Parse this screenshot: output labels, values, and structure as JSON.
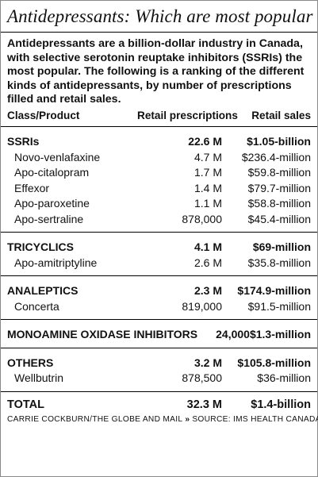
{
  "title": "Antidepressants: Which are most popular",
  "intro": "Antidepressants are a billion-dollar industry in Canada, with selective serotonin reuptake inhibitors (SSRIs) the most popular. The following is a ranking of the different kinds of antidepressants, by number of prescriptions filled and retail sales.",
  "columns": {
    "name": "Class/Product",
    "prescriptions": "Retail prescriptions",
    "sales": "Retail sales"
  },
  "chart_data": {
    "type": "table",
    "groups": [
      {
        "class": "SSRIs",
        "prescriptions": "22.6 M",
        "sales": "$1.05-billion",
        "products": [
          {
            "name": "Novo-venlafaxine",
            "prescriptions": "4.7 M",
            "sales": "$236.4-million"
          },
          {
            "name": "Apo-citalopram",
            "prescriptions": "1.7 M",
            "sales": "$59.8-million"
          },
          {
            "name": "Effexor",
            "prescriptions": "1.4 M",
            "sales": "$79.7-million"
          },
          {
            "name": "Apo-paroxetine",
            "prescriptions": "1.1 M",
            "sales": "$58.8-million"
          },
          {
            "name": "Apo-sertraline",
            "prescriptions": "878,000",
            "sales": "$45.4-million"
          }
        ]
      },
      {
        "class": "TRICYCLICS",
        "prescriptions": "4.1 M",
        "sales": "$69-million",
        "products": [
          {
            "name": "Apo-amitriptyline",
            "prescriptions": "2.6 M",
            "sales": "$35.8-million"
          }
        ]
      },
      {
        "class": "ANALEPTICS",
        "prescriptions": "2.3 M",
        "sales": "$174.9-million",
        "products": [
          {
            "name": "Concerta",
            "prescriptions": "819,000",
            "sales": "$91.5-million"
          }
        ]
      },
      {
        "class": "MONOAMINE OXIDASE INHIBITORS",
        "prescriptions": "24,000",
        "sales": "$1.3-million",
        "products": []
      },
      {
        "class": "OTHERS",
        "prescriptions": "3.2 M",
        "sales": "$105.8-million",
        "products": [
          {
            "name": "Wellbutrin",
            "prescriptions": "878,500",
            "sales": "$36-million"
          }
        ]
      }
    ],
    "total": {
      "label": "TOTAL",
      "prescriptions": "32.3 M",
      "sales": "$1.4-billion"
    }
  },
  "credit": {
    "byline": "CARRIE COCKBURN/THE GLOBE AND MAIL",
    "separator": "»",
    "source": "SOURCE: IMS HEALTH CANADA"
  }
}
